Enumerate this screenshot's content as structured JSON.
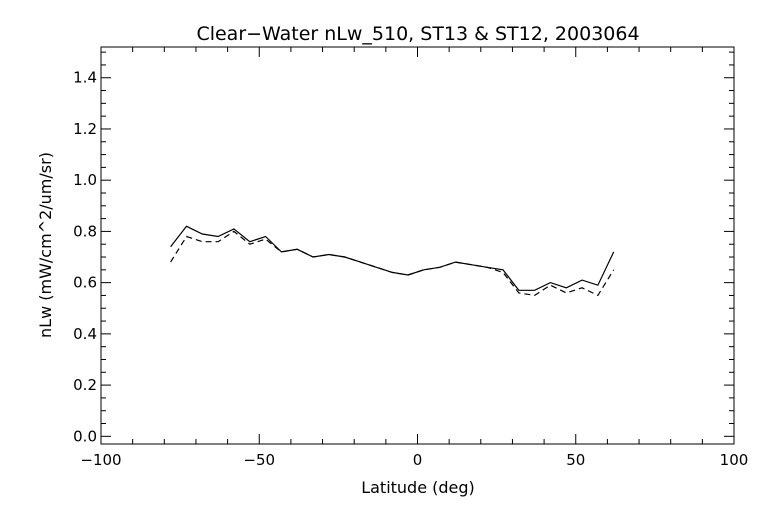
{
  "chart_data": {
    "type": "line",
    "title": "Clear−Water nLw_510, ST13 & ST12, 2003064",
    "xlabel": "Latitude (deg)",
    "ylabel": "nLw (mW/cm^2/um/sr)",
    "xlim": [
      -100,
      100
    ],
    "ylim": [
      -0.03,
      1.52
    ],
    "x_ticks": [
      -100,
      -50,
      0,
      50,
      100
    ],
    "y_ticks": [
      0.0,
      0.2,
      0.4,
      0.6,
      0.8,
      1.0,
      1.2,
      1.4
    ],
    "x_tick_labels": [
      "−100",
      "−50",
      "0",
      "50",
      "100"
    ],
    "y_tick_labels": [
      "0.0",
      "0.2",
      "0.4",
      "0.6",
      "0.8",
      "1.0",
      "1.2",
      "1.4"
    ],
    "grid": false,
    "series": [
      {
        "style": "solid",
        "x": [
          -78,
          -73,
          -68,
          -63,
          -58,
          -53,
          -48,
          -43,
          -38,
          -33,
          -28,
          -23,
          -18,
          -13,
          -8,
          -3,
          2,
          7,
          12,
          17,
          22,
          27,
          32,
          37,
          42,
          47,
          52,
          57,
          62
        ],
        "y": [
          0.74,
          0.82,
          0.79,
          0.78,
          0.81,
          0.76,
          0.78,
          0.72,
          0.73,
          0.7,
          0.71,
          0.7,
          0.68,
          0.66,
          0.64,
          0.63,
          0.65,
          0.66,
          0.68,
          0.67,
          0.66,
          0.65,
          0.57,
          0.57,
          0.6,
          0.58,
          0.61,
          0.59,
          0.72
        ]
      },
      {
        "style": "dashed",
        "x": [
          -78,
          -73,
          -68,
          -63,
          -58,
          -53,
          -48,
          -43,
          -38,
          -33,
          -28,
          -23,
          -18,
          -13,
          -8,
          -3,
          2,
          7,
          12,
          17,
          22,
          27,
          32,
          37,
          42,
          47,
          52,
          57,
          62
        ],
        "y": [
          0.68,
          0.78,
          0.76,
          0.76,
          0.8,
          0.75,
          0.77,
          0.72,
          0.73,
          0.7,
          0.71,
          0.7,
          0.68,
          0.66,
          0.64,
          0.63,
          0.65,
          0.66,
          0.68,
          0.67,
          0.66,
          0.64,
          0.56,
          0.55,
          0.59,
          0.56,
          0.58,
          0.55,
          0.65
        ]
      }
    ]
  }
}
